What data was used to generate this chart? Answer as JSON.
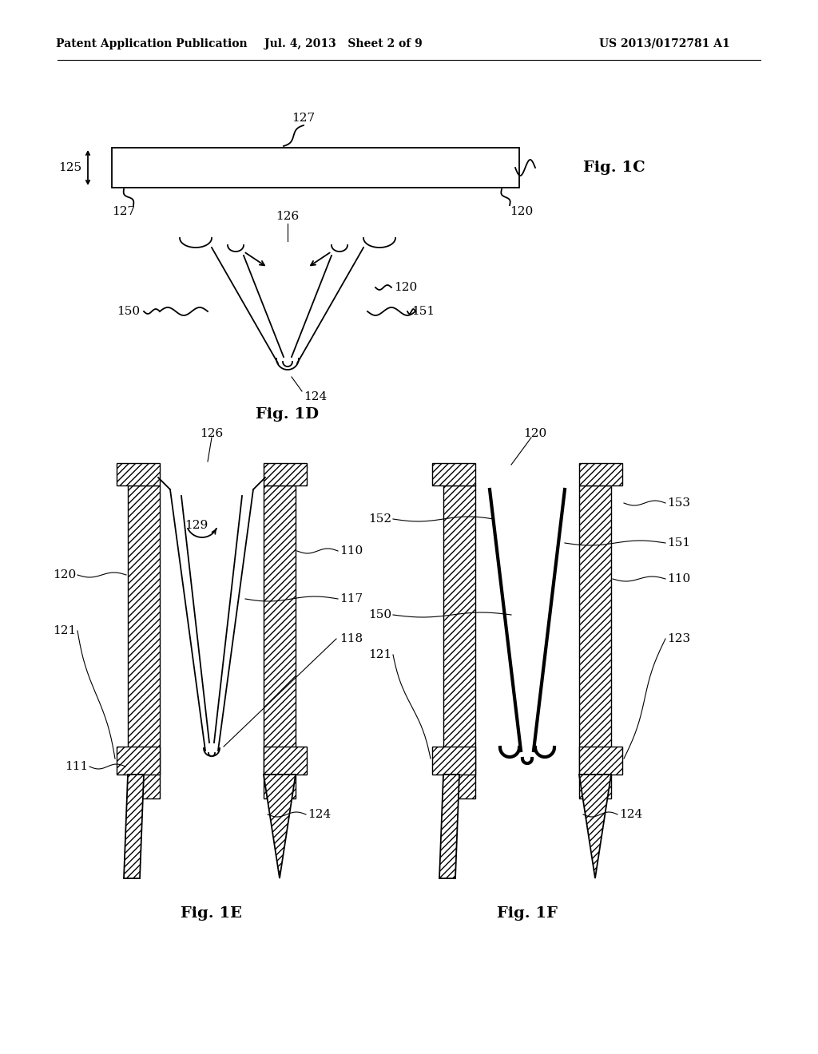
{
  "header_left": "Patent Application Publication",
  "header_mid": "Jul. 4, 2013   Sheet 2 of 9",
  "header_right": "US 2013/0172781 A1",
  "bg_color": "#ffffff"
}
